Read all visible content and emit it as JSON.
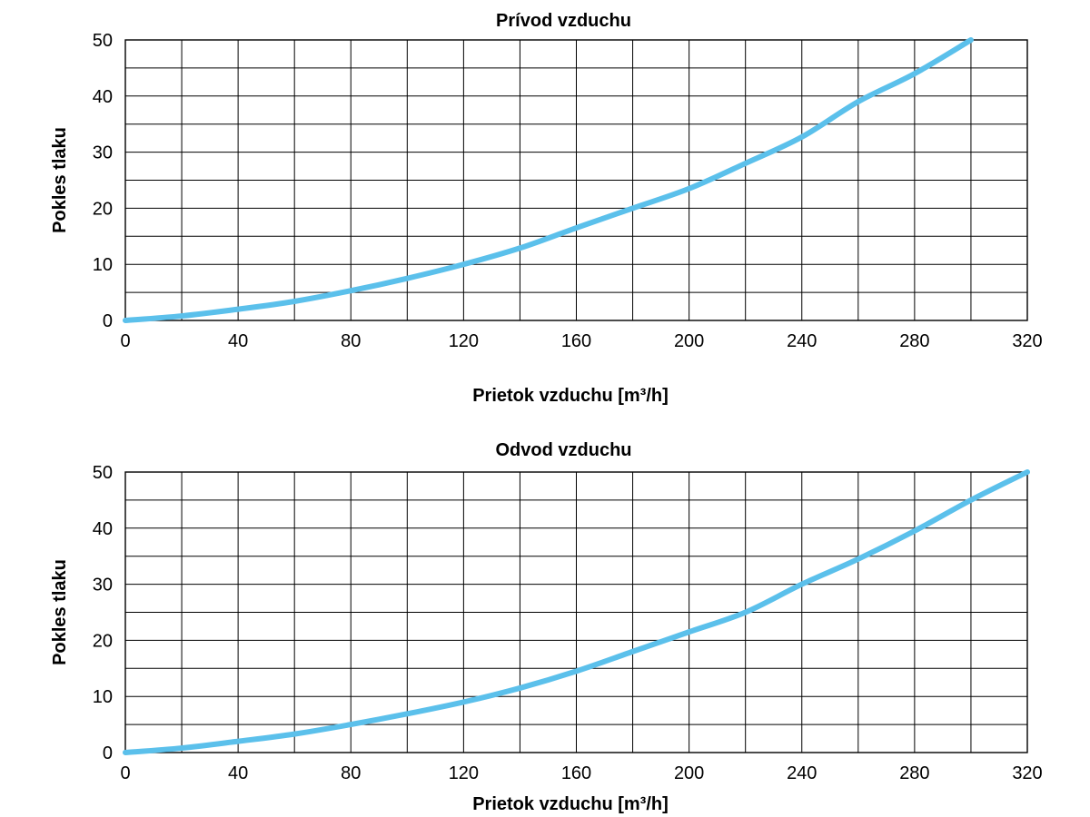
{
  "chart_data": [
    {
      "type": "line",
      "title": "Prívod vzduchu",
      "xlabel": "Prietok vzduchu [m³/h]",
      "ylabel": "Pokles tlaku",
      "xlim": [
        0,
        320
      ],
      "ylim": [
        0,
        50
      ],
      "x_ticks": [
        "0",
        "40",
        "80",
        "120",
        "160",
        "200",
        "240",
        "280",
        "320"
      ],
      "y_ticks": [
        "0",
        "10",
        "20",
        "30",
        "40",
        "50"
      ],
      "x_grid_step": 20,
      "y_grid_step": 5,
      "grid": true,
      "line_color": "#5bc0eb",
      "series": [
        {
          "x": [
            0,
            20,
            40,
            60,
            80,
            100,
            120,
            140,
            160,
            180,
            200,
            220,
            240,
            260,
            280,
            300
          ],
          "values": [
            0,
            0.8,
            2,
            3.4,
            5.3,
            7.5,
            10,
            12.9,
            16.5,
            20,
            23.5,
            28,
            32.7,
            39,
            44,
            50
          ]
        }
      ]
    },
    {
      "type": "line",
      "title": "Odvod vzduchu",
      "xlabel": "Prietok vzduchu [m³/h]",
      "ylabel": "Pokles tlaku",
      "xlim": [
        0,
        320
      ],
      "ylim": [
        0,
        50
      ],
      "x_ticks": [
        "0",
        "40",
        "80",
        "120",
        "160",
        "200",
        "240",
        "280",
        "320"
      ],
      "y_ticks": [
        "0",
        "10",
        "20",
        "30",
        "40",
        "50"
      ],
      "x_grid_step": 20,
      "y_grid_step": 5,
      "grid": true,
      "line_color": "#5bc0eb",
      "series": [
        {
          "x": [
            0,
            20,
            40,
            60,
            80,
            100,
            120,
            140,
            160,
            180,
            200,
            220,
            240,
            260,
            280,
            300,
            320
          ],
          "values": [
            0,
            0.8,
            2,
            3.3,
            5,
            6.9,
            9,
            11.5,
            14.5,
            18,
            21.5,
            25,
            30,
            34.5,
            39.5,
            45,
            50
          ]
        }
      ]
    }
  ]
}
